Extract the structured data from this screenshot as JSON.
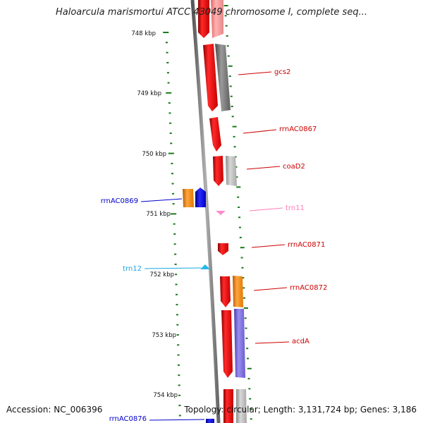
{
  "title": "Haloarcula marismortui ATCC 43049 chromosome I, complete seq...",
  "accession": "Accession: NC_006396",
  "topology": "Topology: circular; Length: 3,131,724 bp; Genes: 3,186",
  "colors": {
    "backbone": "#8a8a8a",
    "tick": "#1a7a1a",
    "gene_forward": "#ff0000",
    "gene_reverse": "#0000ff",
    "cds": "#7a7a7a",
    "orange": "#ff8c00",
    "purple": "#7a6cd6",
    "trna_pink": "#ff8ac8",
    "trna_cyan": "#27b6e8",
    "label_red": "#cc0000",
    "label_blue": "#0000cc",
    "label_pink": "#ff7cb8",
    "label_cyan": "#1aa8e0"
  },
  "scale_labels": [
    "748 kbp",
    "749 kbp",
    "750 kbp",
    "751 kbp",
    "752 kbp",
    "753 kbp",
    "754 kbp"
  ],
  "gene_labels": [
    {
      "text": "gcs2",
      "tone": "red"
    },
    {
      "text": "rrnAC0867",
      "tone": "red"
    },
    {
      "text": "coaD2",
      "tone": "red"
    },
    {
      "text": "rrnAC0869",
      "tone": "blue"
    },
    {
      "text": "trn11",
      "tone": "pink"
    },
    {
      "text": "rrnAC0871",
      "tone": "red"
    },
    {
      "text": "trn12",
      "tone": "cyan"
    },
    {
      "text": "rrnAC0872",
      "tone": "red"
    },
    {
      "text": "acdA",
      "tone": "red"
    },
    {
      "text": "rrnAC0876",
      "tone": "blue"
    }
  ]
}
